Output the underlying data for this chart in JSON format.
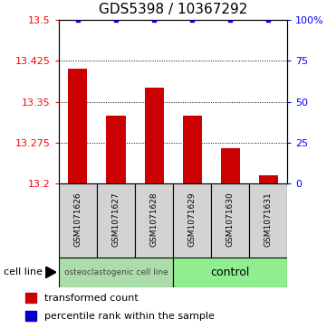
{
  "title": "GDS5398 / 10367292",
  "samples": [
    "GSM1071626",
    "GSM1071627",
    "GSM1071628",
    "GSM1071629",
    "GSM1071630",
    "GSM1071631"
  ],
  "bar_values": [
    13.41,
    13.325,
    13.375,
    13.325,
    13.265,
    13.215
  ],
  "percentile_values": [
    100,
    100,
    100,
    100,
    100,
    100
  ],
  "bar_color": "#cc0000",
  "dot_color": "#0000cc",
  "ylim_left": [
    13.2,
    13.5
  ],
  "ylim_right": [
    0,
    100
  ],
  "yticks_left": [
    13.2,
    13.275,
    13.35,
    13.425,
    13.5
  ],
  "yticks_right": [
    0,
    25,
    50,
    75,
    100
  ],
  "grid_ticks": [
    13.275,
    13.35,
    13.425
  ],
  "cell_line_label": "cell line",
  "group1_label": "osteoclastogenic cell line",
  "group2_label": "control",
  "group_color": "#90ee90",
  "gray_color": "#d3d3d3",
  "legend_bar_label": "transformed count",
  "legend_dot_label": "percentile rank within the sample",
  "bar_width": 0.5,
  "tick_label_fontsize": 8,
  "title_fontsize": 11,
  "sample_label_fontsize": 6.5,
  "group_label_fontsize1": 6.5,
  "group_label_fontsize2": 9,
  "legend_fontsize": 8
}
